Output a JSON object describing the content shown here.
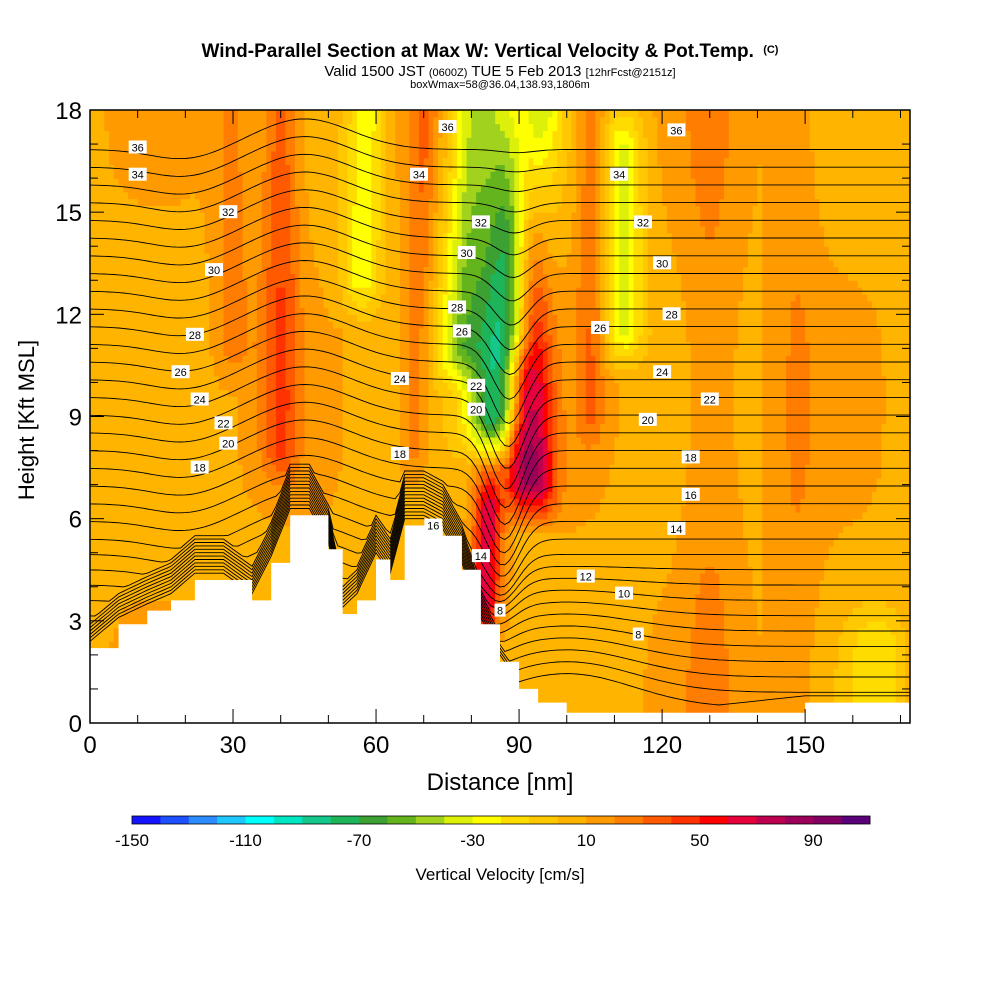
{
  "chart_data": {
    "type": "heatmap",
    "title": "Wind-Parallel Section at Max W: Vertical Velocity & Pot.Temp.",
    "title_mark": "(C)",
    "subtitle": {
      "prefix": "Valid 1500 JST",
      "utc": "(0600Z)",
      "date": "TUE 5 Feb 2013",
      "forecast": "[12hrFcst@2151z]",
      "box": "boxWmax=58@36.04,138.93,1806m"
    },
    "xlabel": "Distance [nm]",
    "ylabel": "Height [Kft MSL]",
    "xlim": [
      0,
      172
    ],
    "ylim": [
      0,
      18
    ],
    "x_ticks": [
      0,
      30,
      60,
      90,
      120,
      150
    ],
    "y_ticks": [
      0,
      3,
      6,
      9,
      12,
      15,
      18
    ],
    "colorbar": {
      "label": "Vertical Velocity [cm/s]",
      "min": -150,
      "max": 100,
      "step": 10,
      "tick_labels": [
        -150,
        -110,
        -70,
        -30,
        10,
        50,
        90
      ],
      "colors": [
        "#1414ff",
        "#1e50ff",
        "#2c8cff",
        "#1ec8ff",
        "#00ffff",
        "#00e6c3",
        "#14c88c",
        "#1eb45a",
        "#3ca032",
        "#64b41e",
        "#a0d21e",
        "#dcf00a",
        "#ffff00",
        "#ffdc00",
        "#ffc800",
        "#ffb400",
        "#ff9b00",
        "#ff7d00",
        "#ff5a00",
        "#ff3200",
        "#ff0000",
        "#e6003c",
        "#be0050",
        "#9b005a",
        "#820064",
        "#5a0078"
      ]
    },
    "terrain_kft": {
      "x": [
        0,
        6,
        12,
        17,
        22,
        28,
        34,
        38,
        42,
        46,
        50,
        53,
        56,
        60,
        63,
        66,
        70,
        74,
        78,
        82,
        86,
        90,
        94,
        100,
        110,
        130,
        150,
        172
      ],
      "y": [
        2.2,
        2.9,
        3.3,
        3.6,
        4.2,
        4.2,
        3.6,
        4.7,
        6.1,
        6.1,
        5.1,
        3.2,
        3.6,
        4.8,
        4.2,
        5.8,
        5.8,
        5.5,
        4.5,
        2.9,
        1.8,
        1.0,
        0.6,
        0.3,
        0.3,
        0.3,
        0.6,
        0.6
      ]
    },
    "velocity_features": [
      {
        "x": 85,
        "z_bottom": 9,
        "z_top": 18,
        "width": 6,
        "tilt": 0.7,
        "value": -90
      },
      {
        "x": 78,
        "z_bottom": 11,
        "z_top": 18,
        "width": 5,
        "tilt": 0.4,
        "value": -50
      },
      {
        "x": 57,
        "z_bottom": 13,
        "z_top": 18,
        "width": 4,
        "tilt": 0.2,
        "value": -35
      },
      {
        "x": 112,
        "z_bottom": 11.5,
        "z_top": 17,
        "width": 4,
        "tilt": 0.0,
        "value": -40
      },
      {
        "x": 94,
        "z_bottom": 7,
        "z_top": 18,
        "width": 4,
        "tilt": -0.3,
        "value": 60
      },
      {
        "x": 83,
        "z_bottom": 3.5,
        "z_top": 6.5,
        "width": 3,
        "tilt": 0.2,
        "value": 60
      },
      {
        "x": 105,
        "z_bottom": 9,
        "z_top": 18,
        "width": 3,
        "tilt": 0.0,
        "value": 20
      },
      {
        "x": 68,
        "z_bottom": 8,
        "z_top": 18,
        "width": 3,
        "tilt": 0.2,
        "value": 20
      },
      {
        "x": 40,
        "z_bottom": 8,
        "z_top": 18,
        "width": 4,
        "tilt": 0.0,
        "value": 30
      },
      {
        "x": 30,
        "z_bottom": 11,
        "z_top": 18,
        "width": 4,
        "tilt": 0.0,
        "value": 15
      },
      {
        "x": 90,
        "z_bottom": 7,
        "z_top": 10,
        "width": 3,
        "tilt": 0.0,
        "value": 40
      },
      {
        "x": 165,
        "z_bottom": 0.3,
        "z_top": 2.5,
        "width": 6,
        "tilt": 0.0,
        "value": -25
      },
      {
        "x": 130,
        "z_bottom": 0.3,
        "z_top": 18,
        "width": 6,
        "tilt": 0.0,
        "value": 12
      },
      {
        "x": 148,
        "z_bottom": 0.3,
        "z_top": 18,
        "width": 5,
        "tilt": 0.0,
        "value": 10
      }
    ],
    "theta_contours": [
      {
        "label": "8",
        "value": 8,
        "label_positions": [
          [
            86,
            3.3
          ],
          [
            115,
            2.6
          ]
        ]
      },
      {
        "label": "10",
        "value": 10,
        "label_positions": [
          [
            112,
            3.8
          ]
        ]
      },
      {
        "label": "12",
        "value": 12,
        "label_positions": [
          [
            104,
            4.3
          ]
        ]
      },
      {
        "label": "14",
        "value": 14,
        "label_positions": [
          [
            82,
            4.9
          ],
          [
            123,
            5.7
          ]
        ]
      },
      {
        "label": "16",
        "value": 16,
        "label_positions": [
          [
            72,
            5.8
          ],
          [
            126,
            6.7
          ]
        ]
      },
      {
        "label": "18",
        "value": 18,
        "label_positions": [
          [
            23,
            7.5
          ],
          [
            65,
            7.9
          ],
          [
            126,
            7.8
          ]
        ]
      },
      {
        "label": "20",
        "value": 20,
        "label_positions": [
          [
            29,
            8.2
          ],
          [
            81,
            9.2
          ],
          [
            117,
            8.9
          ]
        ]
      },
      {
        "label": "22",
        "value": 22,
        "label_positions": [
          [
            28,
            8.8
          ],
          [
            81,
            9.9
          ],
          [
            130,
            9.5
          ]
        ]
      },
      {
        "label": "24",
        "value": 24,
        "label_positions": [
          [
            23,
            9.5
          ],
          [
            65,
            10.1
          ],
          [
            120,
            10.3
          ]
        ]
      },
      {
        "label": "26",
        "value": 26,
        "label_positions": [
          [
            19,
            10.3
          ],
          [
            78,
            11.5
          ],
          [
            107,
            11.6
          ]
        ]
      },
      {
        "label": "28",
        "value": 28,
        "label_positions": [
          [
            22,
            11.4
          ],
          [
            77,
            12.2
          ],
          [
            122,
            12.0
          ]
        ]
      },
      {
        "label": "30",
        "value": 30,
        "label_positions": [
          [
            26,
            13.3
          ],
          [
            79,
            13.8
          ],
          [
            120,
            13.5
          ]
        ]
      },
      {
        "label": "32",
        "value": 32,
        "label_positions": [
          [
            29,
            15.0
          ],
          [
            82,
            14.7
          ],
          [
            116,
            14.7
          ]
        ]
      },
      {
        "label": "34",
        "value": 34,
        "label_positions": [
          [
            10,
            16.1
          ],
          [
            69,
            16.1
          ],
          [
            111,
            16.1
          ]
        ]
      },
      {
        "label": "36",
        "value": 36,
        "label_positions": [
          [
            10,
            16.9
          ],
          [
            75,
            17.5
          ],
          [
            123,
            17.4
          ]
        ]
      }
    ]
  }
}
